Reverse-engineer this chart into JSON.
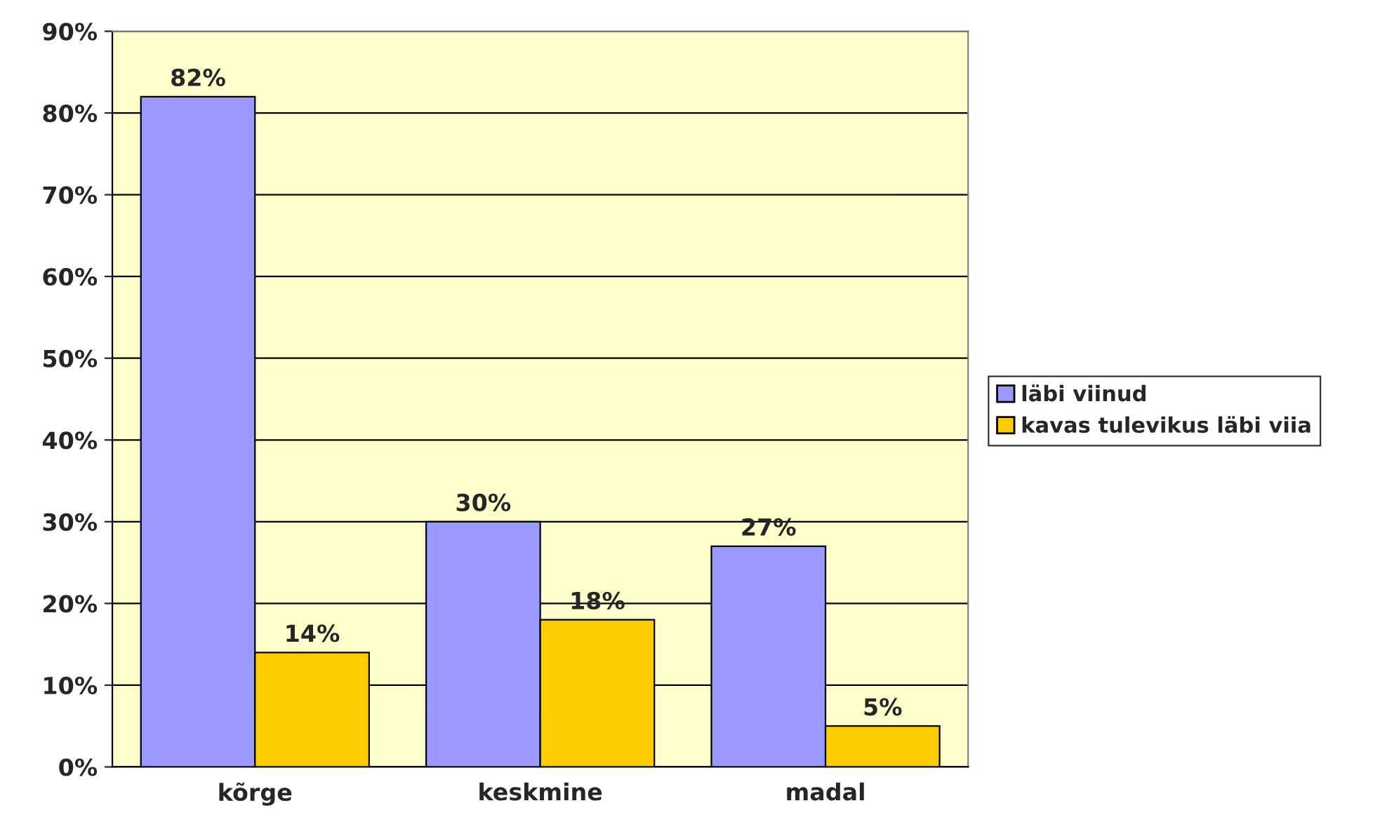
{
  "chart_data": {
    "type": "bar",
    "categories": [
      "kõrge",
      "keskmine",
      "madal"
    ],
    "series": [
      {
        "name": "läbi viinud",
        "color": "#9999ff",
        "values": [
          82,
          30,
          27
        ],
        "value_labels": [
          "82%",
          "30%",
          "27%"
        ]
      },
      {
        "name": "kavas tulevikus läbi viia",
        "color": "#ffcc00",
        "values": [
          14,
          18,
          5
        ],
        "value_labels": [
          "14%",
          "18%",
          "5%"
        ]
      }
    ],
    "ylim": [
      0,
      90
    ],
    "yticks": [
      {
        "value": 0,
        "label": "0%"
      },
      {
        "value": 10,
        "label": "10%"
      },
      {
        "value": 20,
        "label": "20%"
      },
      {
        "value": 30,
        "label": "30%"
      },
      {
        "value": 40,
        "label": "40%"
      },
      {
        "value": 50,
        "label": "50%"
      },
      {
        "value": 60,
        "label": "60%"
      },
      {
        "value": 70,
        "label": "70%"
      },
      {
        "value": 80,
        "label": "80%"
      },
      {
        "value": 90,
        "label": "90%"
      }
    ],
    "grid": "y",
    "legend": "right"
  }
}
